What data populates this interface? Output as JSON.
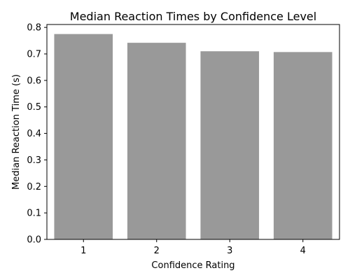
{
  "chart_data": {
    "type": "bar",
    "title": "Median Reaction Times by Confidence Level",
    "xlabel": "Confidence Rating",
    "ylabel": "Median Reaction Time (s)",
    "categories": [
      "1",
      "2",
      "3",
      "4"
    ],
    "values": [
      0.775,
      0.742,
      0.71,
      0.707
    ],
    "ylim": [
      0,
      0.8
    ],
    "yticks": [
      "0.0",
      "0.1",
      "0.2",
      "0.3",
      "0.4",
      "0.5",
      "0.6",
      "0.7",
      "0.8"
    ],
    "bar_color": "#999999",
    "grid": false,
    "legend": "none"
  }
}
